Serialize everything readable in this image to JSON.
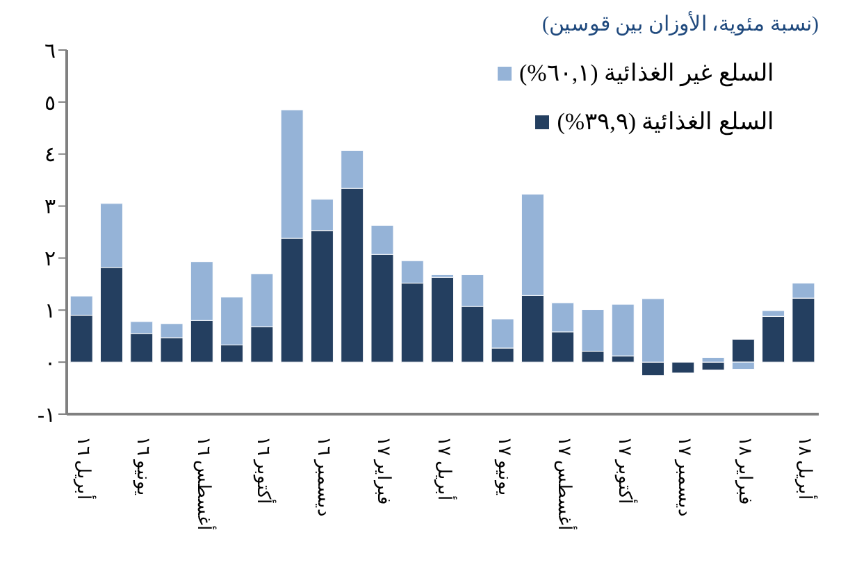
{
  "chart_data": {
    "type": "bar",
    "title": "(نسبة مئوية، الأوزان بين قوسين)",
    "stacked": true,
    "categories": [
      "أبريل ١٦",
      null,
      "يونيو ١٦",
      null,
      "أغسطس ١٦",
      null,
      "أكتوبر ١٦",
      null,
      "ديسمبر ١٦",
      null,
      "فبراير ١٧",
      null,
      "أبريل ١٧",
      null,
      "يونيو ١٧",
      null,
      "أغسطس ١٧",
      null,
      "أكتوبر ١٧",
      null,
      "ديسمبر ١٧",
      null,
      "فبراير ١٨",
      null,
      "أبريل ١٨"
    ],
    "series": [
      {
        "name": "السلع الغذائية (٣٩,٩%)",
        "color": "#243f60",
        "values": [
          0.9,
          1.82,
          0.55,
          0.47,
          0.8,
          0.33,
          0.68,
          2.38,
          2.53,
          3.34,
          2.07,
          1.52,
          1.63,
          1.07,
          0.27,
          1.28,
          0.58,
          0.21,
          0.12,
          -0.26,
          -0.21,
          -0.15,
          0.44,
          0.88,
          1.23
        ]
      },
      {
        "name": "السلع غير الغذائية (٦٠,١%)",
        "color": "#95b3d7",
        "values": [
          0.37,
          1.23,
          0.23,
          0.27,
          1.13,
          0.92,
          1.02,
          2.47,
          0.6,
          0.73,
          0.56,
          0.43,
          0.05,
          0.61,
          0.56,
          1.95,
          0.56,
          0.8,
          0.99,
          1.22,
          0,
          0.09,
          -0.14,
          0.11,
          0.29
        ]
      }
    ],
    "ylim": [
      -1,
      6
    ],
    "yticks": [
      {
        "value": -1,
        "label": "-١"
      },
      {
        "value": 0,
        "label": "٠"
      },
      {
        "value": 1,
        "label": "١"
      },
      {
        "value": 2,
        "label": "٢"
      },
      {
        "value": 3,
        "label": "٣"
      },
      {
        "value": 4,
        "label": "٤"
      },
      {
        "value": 5,
        "label": "٥"
      },
      {
        "value": 6,
        "label": "٦"
      }
    ],
    "legend": "top right",
    "grid": false
  }
}
